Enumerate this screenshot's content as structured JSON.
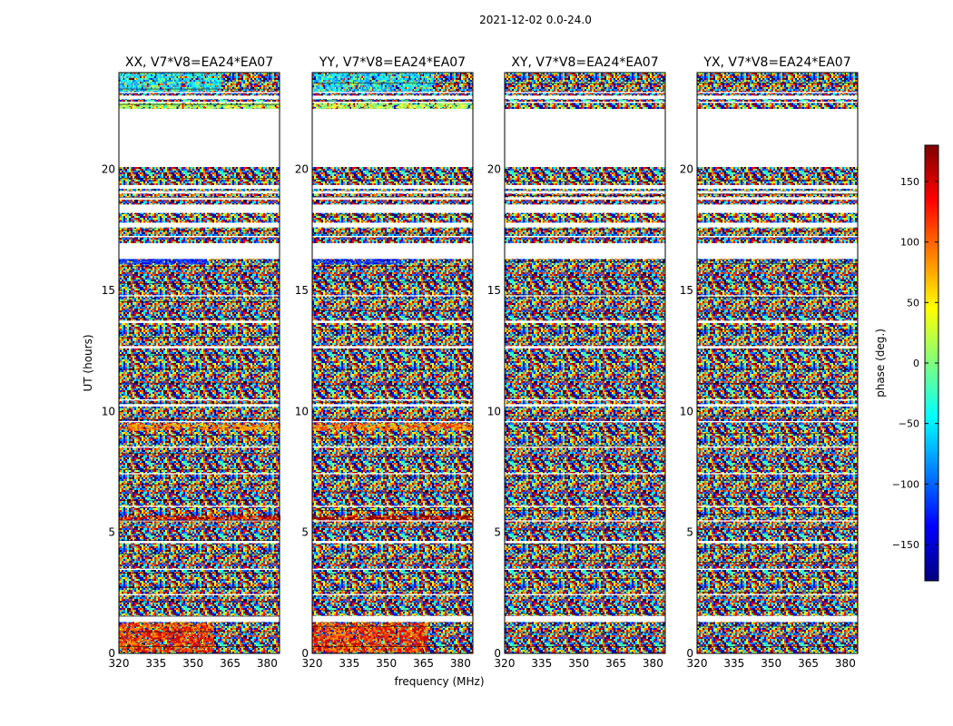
{
  "figure": {
    "suptitle": "2021-12-02 0.0-24.0"
  },
  "chart_data": {
    "type": "heatmap",
    "xlabel": "frequency (MHz)",
    "ylabel": "UT (hours)",
    "xlim": [
      320,
      385
    ],
    "ylim": [
      0,
      24
    ],
    "xticks": [
      320,
      335,
      350,
      365,
      380
    ],
    "yticks": [
      0,
      5,
      10,
      15,
      20
    ],
    "xtick_labels": [
      "320",
      "335",
      "350",
      "365",
      "380"
    ],
    "ytick_labels": [
      "0",
      "5",
      "10",
      "15",
      "20"
    ],
    "panels": [
      {
        "id": "xx",
        "title": "XX, V7*V8=EA24*EA07",
        "coherent": true
      },
      {
        "id": "yy",
        "title": "YY, V7*V8=EA24*EA07",
        "coherent": true
      },
      {
        "id": "xy",
        "title": "XY, V7*V8=EA24*EA07",
        "coherent": false
      },
      {
        "id": "yx",
        "title": "YX, V7*V8=EA24*EA07",
        "coherent": false
      }
    ],
    "colorbar": {
      "label": "phase (deg.)",
      "range": [
        -180,
        180
      ],
      "ticks": [
        150,
        100,
        50,
        0,
        -50,
        -100,
        -150
      ],
      "tick_labels": [
        "150",
        "100",
        "50",
        "0",
        "−50",
        "−100",
        "−150"
      ],
      "colormap": "jet",
      "colors": [
        "#00007f",
        "#0000ff",
        "#007fff",
        "#00ffff",
        "#7fff7f",
        "#ffff00",
        "#ff7f00",
        "#ff0000",
        "#7f0000"
      ]
    },
    "data_gaps_hours": [
      [
        1.3,
        1.55
      ],
      [
        2.4,
        2.45
      ],
      [
        3.45,
        3.5
      ],
      [
        4.55,
        4.65
      ],
      [
        5.45,
        5.5
      ],
      [
        6.05,
        6.1
      ],
      [
        7.4,
        7.45
      ],
      [
        8.5,
        8.55
      ],
      [
        9.55,
        9.6
      ],
      [
        10.2,
        10.3
      ],
      [
        10.45,
        10.5
      ],
      [
        12.6,
        12.7
      ],
      [
        13.65,
        13.75
      ],
      [
        14.75,
        14.8
      ],
      [
        16.3,
        16.95
      ],
      [
        17.2,
        17.25
      ],
      [
        17.6,
        17.8
      ],
      [
        18.2,
        18.55
      ],
      [
        18.75,
        18.85
      ],
      [
        19.0,
        19.1
      ],
      [
        19.2,
        19.35
      ],
      [
        20.1,
        22.5
      ],
      [
        22.75,
        22.8
      ],
      [
        22.9,
        23.05
      ],
      [
        23.15,
        23.2
      ]
    ]
  }
}
